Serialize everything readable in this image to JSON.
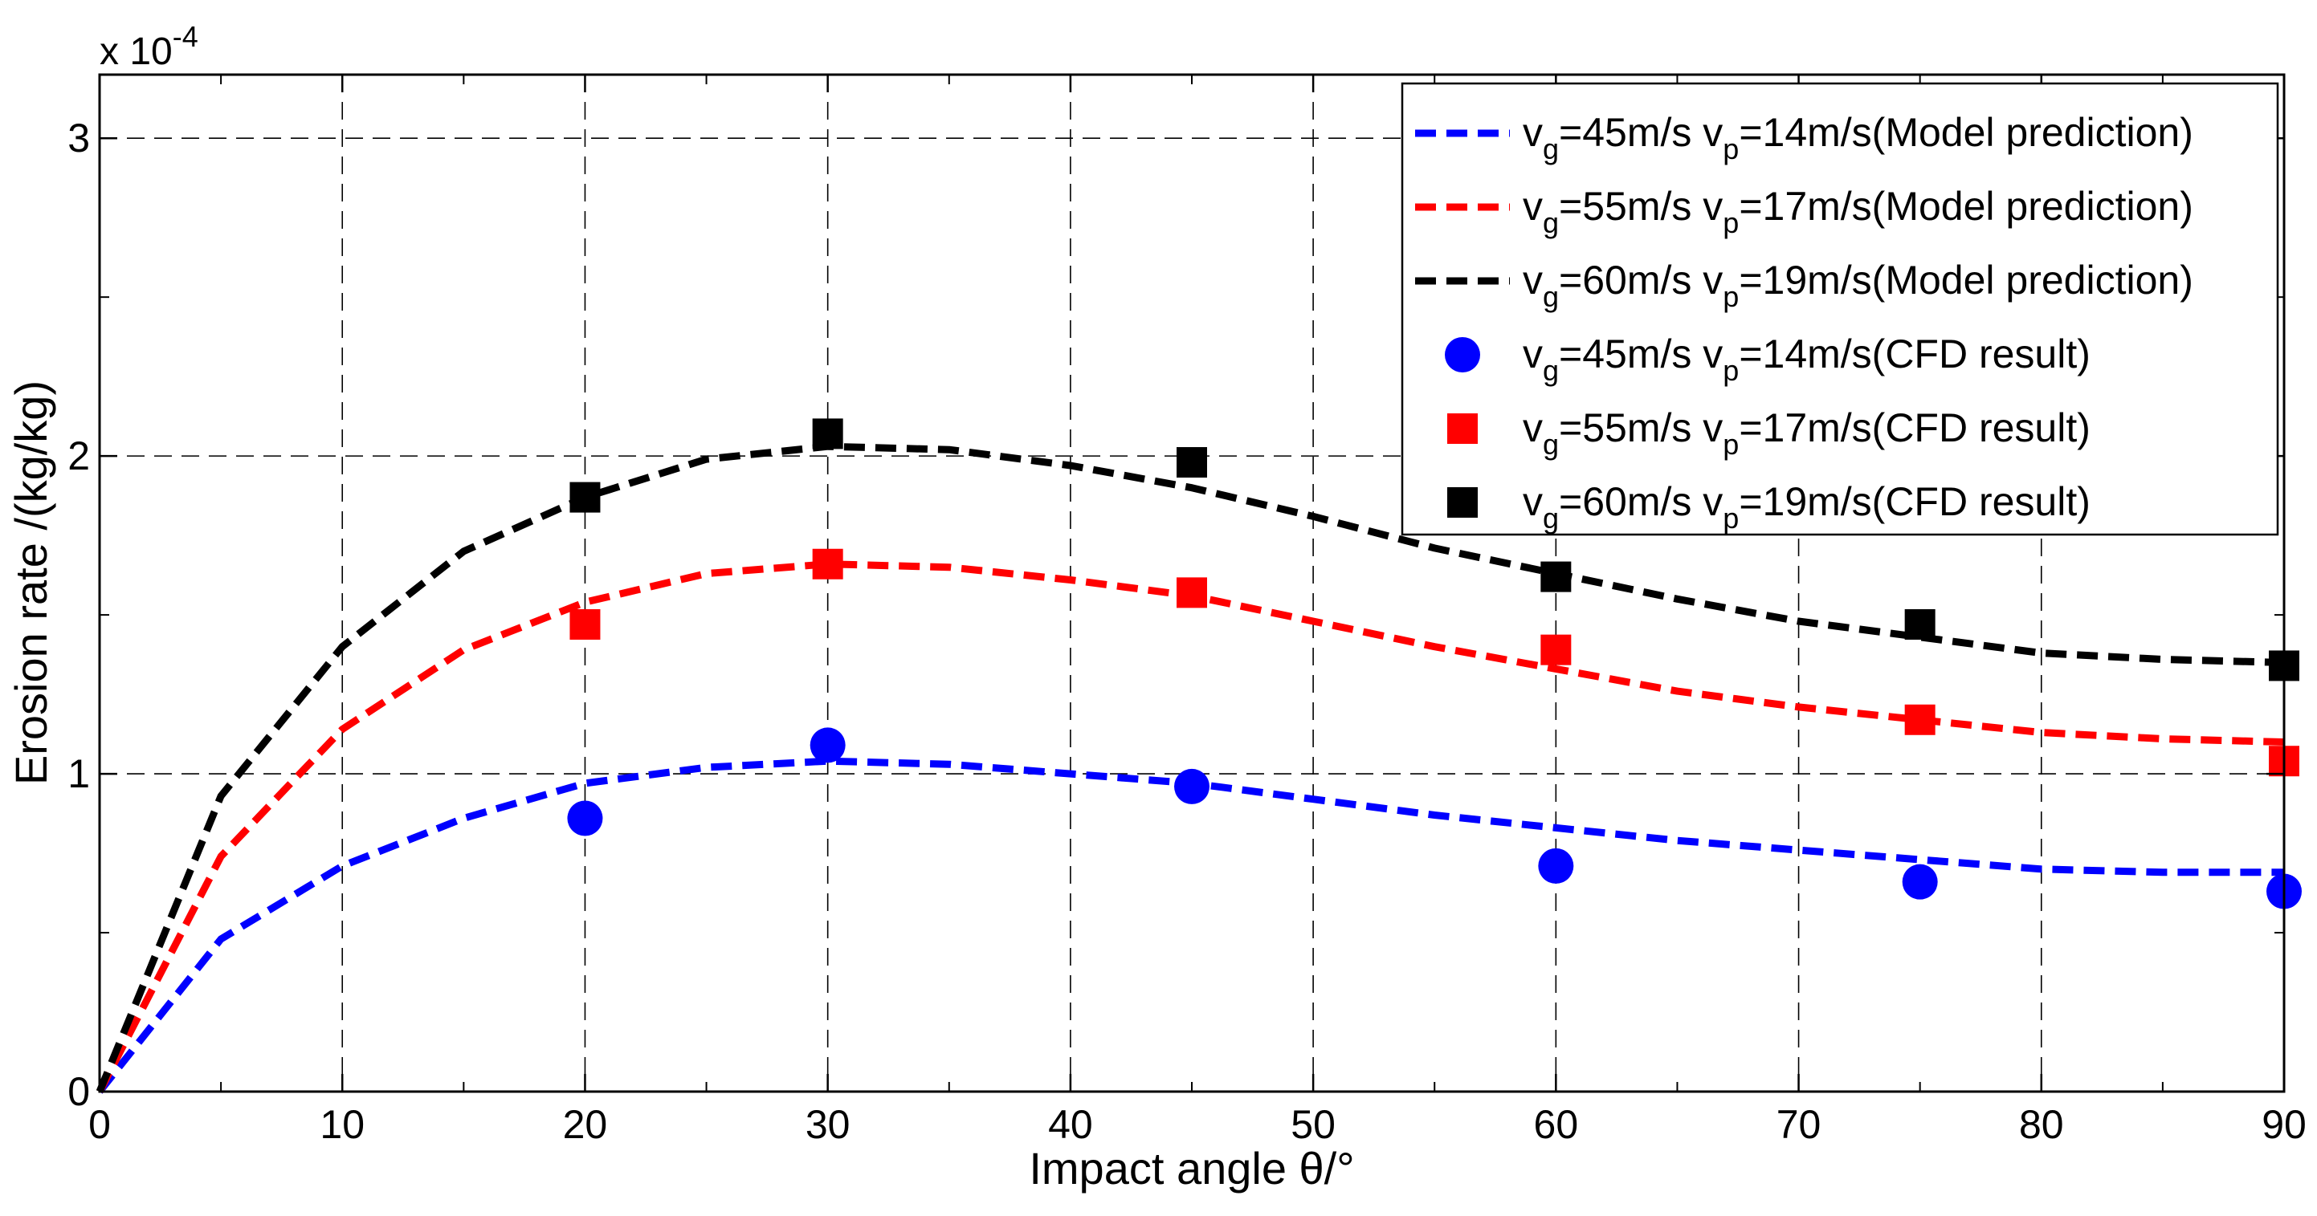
{
  "chart_data": {
    "type": "line",
    "xlabel": "Impact angle θ/°",
    "ylabel": "Erosion rate /(kg/kg)",
    "y_multiplier": {
      "base": "x 10",
      "exponent": "-4"
    },
    "xlim": [
      0,
      90
    ],
    "ylim": [
      0,
      3.2
    ],
    "xticks": [
      0,
      10,
      20,
      30,
      40,
      50,
      60,
      70,
      80,
      90
    ],
    "yticks": [
      0,
      1,
      2,
      3
    ],
    "grid": true,
    "legend_position": "top-right",
    "series": [
      {
        "name": "vg=45m/s vp=14m/s(Model prediction)",
        "label_parts": {
          "g_val": "=45m/s v",
          "p_val": "=14m/s(Model prediction)"
        },
        "kind": "line",
        "color": "#0000ff",
        "x": [
          0,
          5,
          10,
          15,
          20,
          25,
          30,
          35,
          40,
          45,
          50,
          55,
          60,
          65,
          70,
          75,
          80,
          85,
          90
        ],
        "values": [
          0,
          0.48,
          0.71,
          0.86,
          0.97,
          1.02,
          1.04,
          1.03,
          1.0,
          0.97,
          0.92,
          0.87,
          0.83,
          0.79,
          0.76,
          0.73,
          0.7,
          0.69,
          0.69
        ]
      },
      {
        "name": "vg=55m/s vp=17m/s(Model prediction)",
        "label_parts": {
          "g_val": "=55m/s v",
          "p_val": "=17m/s(Model prediction)"
        },
        "kind": "line",
        "color": "#ff0000",
        "x": [
          0,
          5,
          10,
          15,
          20,
          25,
          30,
          35,
          40,
          45,
          50,
          55,
          60,
          65,
          70,
          75,
          80,
          85,
          90
        ],
        "values": [
          0,
          0.74,
          1.14,
          1.39,
          1.54,
          1.63,
          1.66,
          1.65,
          1.61,
          1.56,
          1.48,
          1.4,
          1.33,
          1.26,
          1.21,
          1.17,
          1.13,
          1.11,
          1.1
        ]
      },
      {
        "name": "vg=60m/s vp=19m/s(Model prediction)",
        "label_parts": {
          "g_val": "=60m/s v",
          "p_val": "=19m/s(Model prediction)"
        },
        "kind": "line",
        "color": "#000000",
        "x": [
          0,
          5,
          10,
          15,
          20,
          25,
          30,
          35,
          40,
          45,
          50,
          55,
          60,
          65,
          70,
          75,
          80,
          85,
          90
        ],
        "values": [
          0,
          0.93,
          1.4,
          1.7,
          1.87,
          1.99,
          2.03,
          2.02,
          1.97,
          1.9,
          1.81,
          1.71,
          1.63,
          1.55,
          1.48,
          1.43,
          1.38,
          1.36,
          1.35
        ]
      },
      {
        "name": "vg=45m/s vp=14m/s(CFD result)",
        "label_parts": {
          "g_val": "=45m/s v",
          "p_val": "=14m/s(CFD result)"
        },
        "kind": "scatter",
        "marker": "circle",
        "color": "#0000ff",
        "x": [
          20,
          30,
          45,
          60,
          75,
          90
        ],
        "values": [
          0.86,
          1.09,
          0.96,
          0.71,
          0.66,
          0.63
        ]
      },
      {
        "name": "vg=55m/s vp=17m/s(CFD result)",
        "label_parts": {
          "g_val": "=55m/s v",
          "p_val": "=17m/s(CFD result)"
        },
        "kind": "scatter",
        "marker": "square",
        "color": "#ff0000",
        "x": [
          20,
          30,
          45,
          60,
          75,
          90
        ],
        "values": [
          1.47,
          1.66,
          1.57,
          1.39,
          1.17,
          1.04
        ]
      },
      {
        "name": "vg=60m/s vp=19m/s(CFD result)",
        "label_parts": {
          "g_val": "=60m/s v",
          "p_val": "=19m/s(CFD result)"
        },
        "kind": "scatter",
        "marker": "square",
        "color": "#000000",
        "x": [
          20,
          30,
          45,
          60,
          75,
          90
        ],
        "values": [
          1.87,
          2.07,
          1.98,
          1.62,
          1.47,
          1.34
        ]
      }
    ],
    "legend_subscripts": {
      "gas": "g",
      "particle": "p",
      "v": "v"
    }
  }
}
